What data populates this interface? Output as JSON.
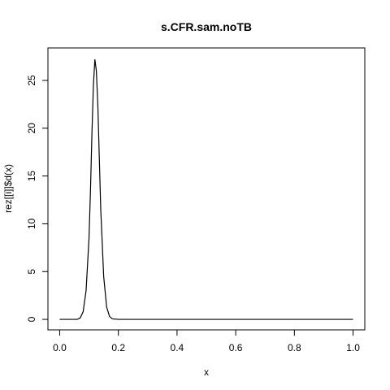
{
  "chart_data": {
    "type": "line",
    "title": "s.CFR.sam.noTB",
    "xlabel": "x",
    "ylabel": "rez[[i]]$d(x)",
    "xlim": [
      -0.04,
      1.04
    ],
    "ylim": [
      -1.1,
      28.4
    ],
    "x_ticks": [
      0.0,
      0.2,
      0.4,
      0.6,
      0.8,
      1.0
    ],
    "x_tick_labels": [
      "0.0",
      "0.2",
      "0.4",
      "0.6",
      "0.8",
      "1.0"
    ],
    "y_ticks": [
      0,
      5,
      10,
      15,
      20,
      25
    ],
    "y_tick_labels": [
      "0",
      "5",
      "10",
      "15",
      "20",
      "25"
    ],
    "grid": false,
    "series": [
      {
        "x": [
          0.0,
          0.06,
          0.07,
          0.08,
          0.09,
          0.1,
          0.105,
          0.11,
          0.115,
          0.12,
          0.125,
          0.13,
          0.135,
          0.14,
          0.15,
          0.16,
          0.17,
          0.18,
          0.2,
          0.3,
          0.5,
          0.7,
          0.9,
          1.0
        ],
        "y": [
          0.0,
          0.0,
          0.15,
          0.8,
          3.0,
          8.5,
          13.5,
          19.5,
          24.5,
          27.2,
          26.0,
          22.5,
          17.0,
          11.5,
          4.5,
          1.3,
          0.3,
          0.05,
          0.0,
          0.0,
          0.0,
          0.0,
          0.0,
          0.0
        ]
      }
    ]
  }
}
